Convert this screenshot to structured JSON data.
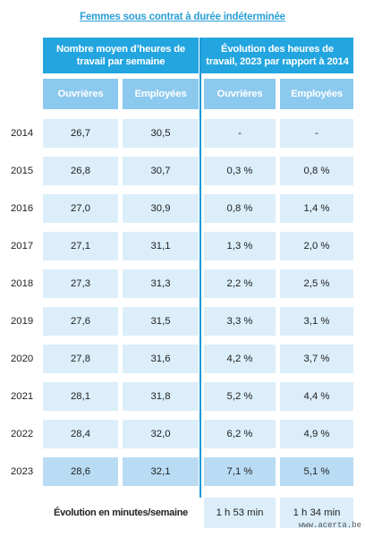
{
  "title": "Femmes sous contrat à durée indéterminée",
  "header": {
    "group1": "Nombre moyen d’heures de travail par semaine",
    "group2": "Évolution des heures de travail, 2023 par rapport à 2014"
  },
  "subheaders": [
    "Ouvrières",
    "Employées",
    "Ouvrières",
    "Employées"
  ],
  "rows": [
    {
      "year": "2014",
      "hours_ouvrieres": "26,7",
      "hours_employees": "30,5",
      "evo_ouvrieres": "-",
      "evo_employees": "-"
    },
    {
      "year": "2015",
      "hours_ouvrieres": "26,8",
      "hours_employees": "30,7",
      "evo_ouvrieres": "0,3 %",
      "evo_employees": "0,8 %"
    },
    {
      "year": "2016",
      "hours_ouvrieres": "27,0",
      "hours_employees": "30,9",
      "evo_ouvrieres": "0,8 %",
      "evo_employees": "1,4 %"
    },
    {
      "year": "2017",
      "hours_ouvrieres": "27,1",
      "hours_employees": "31,1",
      "evo_ouvrieres": "1,3 %",
      "evo_employees": "2,0 %"
    },
    {
      "year": "2018",
      "hours_ouvrieres": "27,3",
      "hours_employees": "31,3",
      "evo_ouvrieres": "2,2 %",
      "evo_employees": "2,5 %"
    },
    {
      "year": "2019",
      "hours_ouvrieres": "27,6",
      "hours_employees": "31,5",
      "evo_ouvrieres": "3,3 %",
      "evo_employees": "3,1 %"
    },
    {
      "year": "2020",
      "hours_ouvrieres": "27,8",
      "hours_employees": "31,6",
      "evo_ouvrieres": "4,2 %",
      "evo_employees": "3,7 %"
    },
    {
      "year": "2021",
      "hours_ouvrieres": "28,1",
      "hours_employees": "31,8",
      "evo_ouvrieres": "5,2 %",
      "evo_employees": "4,4 %"
    },
    {
      "year": "2022",
      "hours_ouvrieres": "28,4",
      "hours_employees": "32,0",
      "evo_ouvrieres": "6,2 %",
      "evo_employees": "4,9 %"
    },
    {
      "year": "2023",
      "hours_ouvrieres": "28,6",
      "hours_employees": "32,1",
      "evo_ouvrieres": "7,1 %",
      "evo_employees": "5,1 %"
    }
  ],
  "footer": {
    "label": "Évolution en minutes/semaine",
    "ouvrieres": "1 h 53 min",
    "employees": "1 h 34 min"
  },
  "source": "www.acerta.be"
}
